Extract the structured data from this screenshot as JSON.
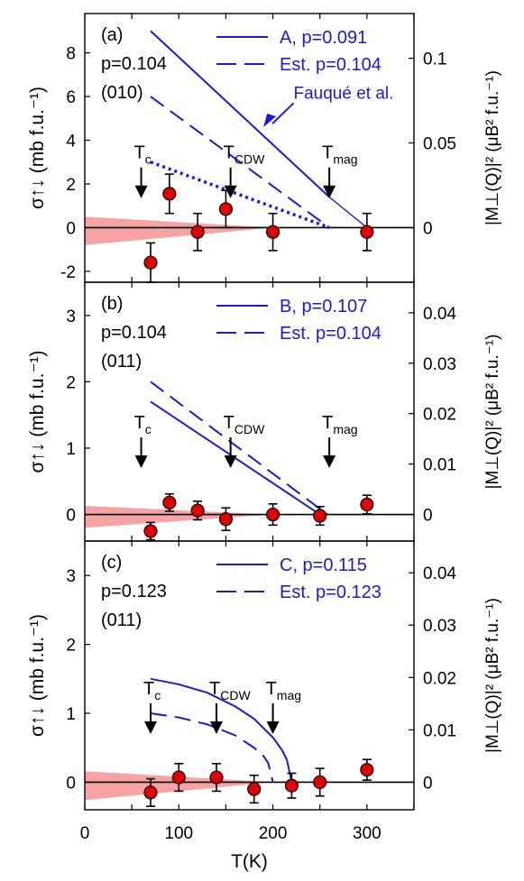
{
  "colors": {
    "model": "#1a1adc",
    "point": "#e00000",
    "band": "#f7a3a3",
    "axis": "#000000"
  },
  "x_axis": {
    "label": "T(K)",
    "range": [
      0,
      350
    ],
    "ticks": [
      "0",
      "100",
      "200",
      "300"
    ]
  },
  "chart_data": [
    {
      "type": "scatter",
      "panel_label": "(a)",
      "info": [
        "p=0.104",
        "(010)"
      ],
      "ylabel_left": "σ↑↓ (mb f.u.⁻¹)",
      "ylabel_right": "|M⊥(Q)|² (μB² f.u.⁻¹)",
      "xlim": [
        0,
        350
      ],
      "ylim": [
        -2.5,
        9.8
      ],
      "y_ticks": [
        "-2",
        "0",
        "2",
        "4",
        "6",
        "8"
      ],
      "right_axis_scale": 0.0129,
      "right_ticks": [
        "0",
        "0.05",
        "0.1"
      ],
      "legend": [
        "A, p=0.091",
        "Est. p=0.104"
      ],
      "annotation": "Fauqué et al.",
      "markers": [
        {
          "label": "T",
          "sub": "c",
          "x": 60
        },
        {
          "label": "T",
          "sub": "CDW",
          "x": 155
        },
        {
          "label": "T",
          "sub": "mag",
          "x": 260
        }
      ],
      "points": [
        {
          "x": 70,
          "y": -1.6,
          "err": 0.9
        },
        {
          "x": 90,
          "y": 1.55,
          "err": 0.9
        },
        {
          "x": 120,
          "y": -0.2,
          "err": 0.85
        },
        {
          "x": 150,
          "y": 0.85,
          "err": 0.85
        },
        {
          "x": 200,
          "y": -0.2,
          "err": 0.85
        },
        {
          "x": 300,
          "y": -0.2,
          "err": 0.85
        }
      ],
      "band": {
        "x0": 0,
        "x1": 200,
        "top0": 0.5,
        "bottom0": -0.8
      },
      "series": [
        {
          "name": "A, p=0.091",
          "style": "solid",
          "x": [
            70,
            260
          ],
          "y": [
            9.0,
            1.4
          ],
          "tail": [
            [
              260,
              1.4
            ],
            [
              300,
              0
            ]
          ]
        },
        {
          "name": "Est. p=0.104",
          "style": "dashed",
          "x": [
            70,
            260
          ],
          "y": [
            6.0,
            0
          ]
        },
        {
          "style": "dotted",
          "x": [
            70,
            260
          ],
          "y": [
            3.0,
            0
          ]
        }
      ]
    },
    {
      "type": "scatter",
      "panel_label": "(b)",
      "info": [
        "p=0.104",
        "(011)"
      ],
      "ylabel_left": "σ↑↓ (mb f.u.⁻¹)",
      "ylabel_right": "|M⊥(Q)|² (μB² f.u.⁻¹)",
      "xlim": [
        0,
        350
      ],
      "ylim": [
        -0.4,
        3.5
      ],
      "y_ticks": [
        "0",
        "1",
        "2",
        "3"
      ],
      "right_axis_scale": 0.01316,
      "right_ticks": [
        "0",
        "0.01",
        "0.02",
        "0.03",
        "0.04"
      ],
      "legend": [
        "B, p=0.107",
        "Est. p=0.104"
      ],
      "markers": [
        {
          "label": "T",
          "sub": "c",
          "x": 60
        },
        {
          "label": "T",
          "sub": "CDW",
          "x": 155
        },
        {
          "label": "T",
          "sub": "mag",
          "x": 260
        }
      ],
      "points": [
        {
          "x": 70,
          "y": -0.25,
          "err": 0.13
        },
        {
          "x": 90,
          "y": 0.18,
          "err": 0.13
        },
        {
          "x": 120,
          "y": 0.06,
          "err": 0.14
        },
        {
          "x": 150,
          "y": -0.07,
          "err": 0.17
        },
        {
          "x": 200,
          "y": 0.0,
          "err": 0.16
        },
        {
          "x": 250,
          "y": -0.02,
          "err": 0.14
        },
        {
          "x": 300,
          "y": 0.15,
          "err": 0.14
        }
      ],
      "band": {
        "x0": 0,
        "x1": 200,
        "top0": 0.13,
        "bottom0": -0.2
      },
      "series": [
        {
          "name": "B, p=0.107",
          "style": "solid",
          "x": [
            70,
            250
          ],
          "y": [
            1.7,
            0
          ]
        },
        {
          "name": "Est. p=0.104",
          "style": "dashed",
          "x": [
            70,
            258
          ],
          "y": [
            2.0,
            0
          ]
        }
      ]
    },
    {
      "type": "scatter",
      "panel_label": "(c)",
      "info": [
        "p=0.123",
        "(011)"
      ],
      "ylabel_left": "σ↑↓ (mb f.u.⁻¹)",
      "ylabel_right": "|M⊥(Q)|² (μB² f.u.⁻¹)",
      "xlim": [
        0,
        350
      ],
      "ylim": [
        -0.4,
        3.5
      ],
      "y_ticks": [
        "0",
        "1",
        "2",
        "3"
      ],
      "right_axis_scale": 0.01316,
      "right_ticks": [
        "0",
        "0.01",
        "0.02",
        "0.03",
        "0.04"
      ],
      "legend": [
        "C, p=0.115",
        "Est. p=0.123"
      ],
      "markers": [
        {
          "label": "T",
          "sub": "c",
          "x": 70
        },
        {
          "label": "T",
          "sub": "CDW",
          "x": 140
        },
        {
          "label": "T",
          "sub": "mag",
          "x": 200
        }
      ],
      "points": [
        {
          "x": 70,
          "y": -0.15,
          "err": 0.2
        },
        {
          "x": 100,
          "y": 0.07,
          "err": 0.2
        },
        {
          "x": 140,
          "y": 0.07,
          "err": 0.2
        },
        {
          "x": 180,
          "y": -0.1,
          "err": 0.2
        },
        {
          "x": 220,
          "y": -0.05,
          "err": 0.18
        },
        {
          "x": 250,
          "y": 0.0,
          "err": 0.2
        },
        {
          "x": 300,
          "y": 0.18,
          "err": 0.15
        }
      ],
      "band": {
        "x0": 0,
        "x1": 200,
        "top0": 0.16,
        "bottom0": -0.26
      },
      "series": [
        {
          "name": "C, p=0.115",
          "style": "solid",
          "x": [
            70,
            100,
            130,
            160,
            180,
            200,
            210,
            215,
            220
          ],
          "y": [
            1.5,
            1.42,
            1.3,
            1.1,
            0.92,
            0.65,
            0.46,
            0.32,
            0
          ]
        },
        {
          "name": "Est. p=0.123",
          "style": "dashed",
          "x": [
            70,
            100,
            130,
            160,
            180,
            190,
            195,
            200
          ],
          "y": [
            1.0,
            0.94,
            0.84,
            0.68,
            0.5,
            0.38,
            0.28,
            0
          ]
        }
      ]
    }
  ]
}
